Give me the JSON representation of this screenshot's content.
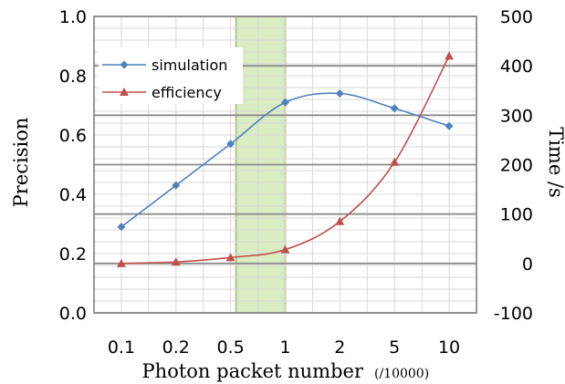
{
  "chart_data": {
    "type": "line",
    "x_categories": [
      "0.1",
      "0.2",
      "0.5",
      "1",
      "2",
      "5",
      "10"
    ],
    "xlabel": "Photon packet number",
    "xlabel_unit": "(/10000)",
    "ylabel_left": "Precision",
    "ylabel_right": "Time /s",
    "ylim_left": [
      0.0,
      1.0
    ],
    "ylim_right": [
      -100,
      500
    ],
    "yticks_left": [
      "0.0",
      "0.2",
      "0.4",
      "0.6",
      "0.8",
      "1.0"
    ],
    "yticks_right": [
      "-100",
      "0",
      "100",
      "200",
      "300",
      "400",
      "500"
    ],
    "grid": true,
    "legend_position": "top-left",
    "highlight_band": {
      "from_category_index": 2.6,
      "to_category_index": 3.5,
      "color": "#d9ecc2",
      "edge_color": "#a9c98a"
    },
    "series": [
      {
        "name": "simulation",
        "axis": "left",
        "color": "#4f81bd",
        "marker": "diamond",
        "smooth": true,
        "values": [
          0.29,
          0.43,
          0.57,
          0.71,
          0.74,
          0.69,
          0.63
        ]
      },
      {
        "name": "efficiency",
        "axis": "right",
        "color": "#c0504d",
        "marker": "triangle",
        "smooth": true,
        "values": [
          0,
          3,
          12,
          28,
          85,
          205,
          420
        ]
      }
    ]
  }
}
